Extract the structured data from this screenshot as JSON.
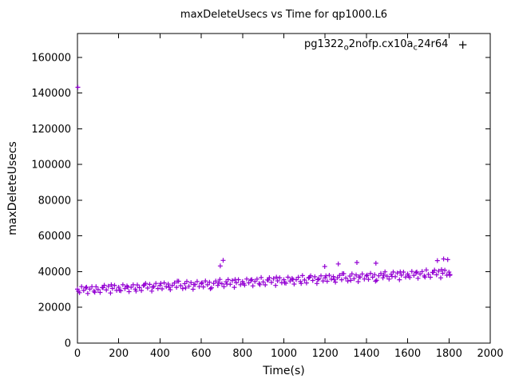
{
  "title": "maxDeleteUsecs vs Time for qp1000.L6",
  "axes": {
    "xlabel": "Time(s)",
    "ylabel": "maxDeleteUsecs"
  },
  "legend": {
    "part1": "pg1322",
    "sub1": "o",
    "part2": "2nofp.cx10a",
    "sub2": "c",
    "part3": "24r64",
    "marker": "+"
  },
  "colors": {
    "series": "#9400d3",
    "axis": "#000000",
    "background": "#ffffff"
  },
  "chart_data": {
    "type": "scatter",
    "title": "maxDeleteUsecs vs Time for qp1000.L6",
    "xlabel": "Time(s)",
    "ylabel": "maxDeleteUsecs",
    "xlim": [
      0,
      2000
    ],
    "ylim": [
      0,
      173300
    ],
    "x_ticks": [
      0,
      200,
      400,
      600,
      800,
      1000,
      1200,
      1400,
      1600,
      1800,
      2000
    ],
    "y_ticks": [
      0,
      20000,
      40000,
      60000,
      80000,
      100000,
      120000,
      140000,
      160000
    ],
    "grid": false,
    "legend_position": "top-right-inside",
    "marker": "plus",
    "series": [
      {
        "name": "pg1322_o2nofp.cx10a_c24r64",
        "color": "#9400d3",
        "points": [
          [
            2,
            143187
          ],
          [
            0,
            30200
          ],
          [
            10,
            28250
          ],
          [
            20,
            31610
          ],
          [
            30,
            29460
          ],
          [
            40,
            30910
          ],
          [
            50,
            27770
          ],
          [
            60,
            30220
          ],
          [
            70,
            31570
          ],
          [
            80,
            29120
          ],
          [
            90,
            31600
          ],
          [
            100,
            30030
          ],
          [
            110,
            28380
          ],
          [
            120,
            31140
          ],
          [
            130,
            32390
          ],
          [
            140,
            29740
          ],
          [
            150,
            31800
          ],
          [
            160,
            28050
          ],
          [
            170,
            30600
          ],
          [
            180,
            32350
          ],
          [
            190,
            29510
          ],
          [
            200,
            31260
          ],
          [
            210,
            29310
          ],
          [
            220,
            32670
          ],
          [
            230,
            30520
          ],
          [
            240,
            31970
          ],
          [
            250,
            28830
          ],
          [
            260,
            31280
          ],
          [
            270,
            32630
          ],
          [
            280,
            30180
          ],
          [
            290,
            32540
          ],
          [
            300,
            31090
          ],
          [
            310,
            29440
          ],
          [
            320,
            32200
          ],
          [
            330,
            33450
          ],
          [
            340,
            30800
          ],
          [
            350,
            32860
          ],
          [
            360,
            29110
          ],
          [
            370,
            31660
          ],
          [
            380,
            33410
          ],
          [
            390,
            30570
          ],
          [
            400,
            32320
          ],
          [
            410,
            30370
          ],
          [
            420,
            33730
          ],
          [
            430,
            31580
          ],
          [
            440,
            33030
          ],
          [
            450,
            29890
          ],
          [
            460,
            32340
          ],
          [
            470,
            33690
          ],
          [
            480,
            31240
          ],
          [
            490,
            34600
          ],
          [
            500,
            32150
          ],
          [
            510,
            30500
          ],
          [
            520,
            33260
          ],
          [
            530,
            34510
          ],
          [
            540,
            31860
          ],
          [
            550,
            33920
          ],
          [
            560,
            30170
          ],
          [
            570,
            32720
          ],
          [
            580,
            34470
          ],
          [
            590,
            31630
          ],
          [
            600,
            33380
          ],
          [
            610,
            31430
          ],
          [
            620,
            34790
          ],
          [
            630,
            32640
          ],
          [
            640,
            34090
          ],
          [
            650,
            30950
          ],
          [
            660,
            33400
          ],
          [
            670,
            34750
          ],
          [
            680,
            32300
          ],
          [
            690,
            35660
          ],
          [
            700,
            33210
          ],
          [
            710,
            31560
          ],
          [
            720,
            34320
          ],
          [
            730,
            35570
          ],
          [
            740,
            32920
          ],
          [
            750,
            34980
          ],
          [
            760,
            31230
          ],
          [
            770,
            33780
          ],
          [
            780,
            35530
          ],
          [
            790,
            32690
          ],
          [
            800,
            34440
          ],
          [
            810,
            32490
          ],
          [
            820,
            35850
          ],
          [
            830,
            33700
          ],
          [
            840,
            35150
          ],
          [
            850,
            32010
          ],
          [
            860,
            34460
          ],
          [
            870,
            35810
          ],
          [
            880,
            33360
          ],
          [
            890,
            36720
          ],
          [
            900,
            34270
          ],
          [
            910,
            32620
          ],
          [
            920,
            35380
          ],
          [
            930,
            36630
          ],
          [
            940,
            33980
          ],
          [
            950,
            36040
          ],
          [
            960,
            32290
          ],
          [
            970,
            34840
          ],
          [
            980,
            36590
          ],
          [
            990,
            33750
          ],
          [
            1000,
            35500
          ],
          [
            1010,
            33550
          ],
          [
            1020,
            36910
          ],
          [
            1030,
            34760
          ],
          [
            1040,
            36210
          ],
          [
            1050,
            33070
          ],
          [
            1060,
            35520
          ],
          [
            1070,
            36870
          ],
          [
            1080,
            34420
          ],
          [
            1090,
            37780
          ],
          [
            1100,
            35330
          ],
          [
            1110,
            33680
          ],
          [
            1120,
            36440
          ],
          [
            1130,
            37690
          ],
          [
            1140,
            35040
          ],
          [
            1150,
            37100
          ],
          [
            1160,
            33350
          ],
          [
            1170,
            35900
          ],
          [
            1180,
            37650
          ],
          [
            1190,
            34810
          ],
          [
            1200,
            36560
          ],
          [
            1210,
            34610
          ],
          [
            1220,
            37970
          ],
          [
            1230,
            35820
          ],
          [
            1240,
            37270
          ],
          [
            1250,
            34130
          ],
          [
            1260,
            36580
          ],
          [
            1270,
            37930
          ],
          [
            1280,
            35480
          ],
          [
            1290,
            38840
          ],
          [
            1300,
            36390
          ],
          [
            1310,
            34740
          ],
          [
            1320,
            37500
          ],
          [
            1330,
            38750
          ],
          [
            1340,
            36100
          ],
          [
            1350,
            38160
          ],
          [
            1360,
            34410
          ],
          [
            1370,
            36960
          ],
          [
            1380,
            38710
          ],
          [
            1390,
            35870
          ],
          [
            1400,
            37620
          ],
          [
            1410,
            35670
          ],
          [
            1420,
            39030
          ],
          [
            1430,
            36880
          ],
          [
            1440,
            38330
          ],
          [
            1450,
            35190
          ],
          [
            1460,
            37640
          ],
          [
            1470,
            38990
          ],
          [
            1480,
            36540
          ],
          [
            1490,
            39900
          ],
          [
            1500,
            37450
          ],
          [
            1510,
            35800
          ],
          [
            1520,
            38560
          ],
          [
            1530,
            39810
          ],
          [
            1540,
            37160
          ],
          [
            1550,
            39220
          ],
          [
            1560,
            35470
          ],
          [
            1570,
            38020
          ],
          [
            1580,
            39770
          ],
          [
            1590,
            36930
          ],
          [
            1600,
            38680
          ],
          [
            1610,
            36730
          ],
          [
            1620,
            40090
          ],
          [
            1630,
            37940
          ],
          [
            1640,
            39390
          ],
          [
            1650,
            36250
          ],
          [
            1660,
            38700
          ],
          [
            1670,
            40050
          ],
          [
            1680,
            37600
          ],
          [
            1690,
            40960
          ],
          [
            1700,
            38510
          ],
          [
            1710,
            36860
          ],
          [
            1720,
            39620
          ],
          [
            1730,
            40870
          ],
          [
            1740,
            38220
          ],
          [
            1750,
            40280
          ],
          [
            1760,
            36530
          ],
          [
            1770,
            39080
          ],
          [
            1780,
            40830
          ],
          [
            1790,
            37990
          ],
          [
            1800,
            39740
          ],
          [
            1805,
            38370
          ],
          [
            4,
            29120
          ],
          [
            44,
            31330
          ],
          [
            84,
            28450
          ],
          [
            124,
            31060
          ],
          [
            164,
            32670
          ],
          [
            204,
            29480
          ],
          [
            244,
            31290
          ],
          [
            284,
            29110
          ],
          [
            324,
            32620
          ],
          [
            364,
            31330
          ],
          [
            404,
            33440
          ],
          [
            444,
            31250
          ],
          [
            484,
            34670
          ],
          [
            524,
            30880
          ],
          [
            564,
            32790
          ],
          [
            604,
            33800
          ],
          [
            644,
            30410
          ],
          [
            684,
            33830
          ],
          [
            724,
            33040
          ],
          [
            764,
            35650
          ],
          [
            804,
            33360
          ],
          [
            844,
            35570
          ],
          [
            884,
            32690
          ],
          [
            924,
            35300
          ],
          [
            964,
            36910
          ],
          [
            1004,
            33720
          ],
          [
            1044,
            35530
          ],
          [
            1084,
            33350
          ],
          [
            1124,
            36860
          ],
          [
            1164,
            35570
          ],
          [
            1204,
            37680
          ],
          [
            1244,
            35490
          ],
          [
            1284,
            38910
          ],
          [
            1324,
            35120
          ],
          [
            1364,
            37030
          ],
          [
            1404,
            38040
          ],
          [
            1444,
            34650
          ],
          [
            1484,
            38070
          ],
          [
            1524,
            37280
          ],
          [
            1564,
            39890
          ],
          [
            1604,
            37600
          ],
          [
            1644,
            39810
          ],
          [
            1684,
            36930
          ],
          [
            1724,
            39540
          ],
          [
            1764,
            41150
          ],
          [
            1804,
            37960
          ],
          [
            692,
            43200
          ],
          [
            706,
            46300
          ],
          [
            1198,
            42900
          ],
          [
            1264,
            44300
          ],
          [
            1354,
            45100
          ],
          [
            1446,
            44700
          ],
          [
            1744,
            46200
          ],
          [
            1774,
            47100
          ],
          [
            1794,
            46700
          ]
        ]
      }
    ]
  }
}
